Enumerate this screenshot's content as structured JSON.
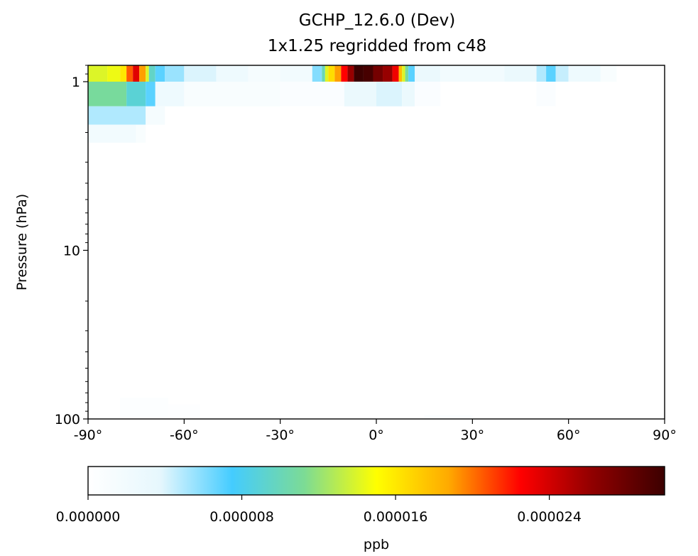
{
  "chart_data": [
    {
      "type": "heatmap",
      "title": "GCHP_12.6.0 (Dev)",
      "subtitle": "1x1.25 regridded from c48",
      "xlabel": "",
      "ylabel": "Pressure (hPa)",
      "xlim": [
        -90,
        90
      ],
      "ylim": [
        100,
        0.8
      ],
      "yscale": "log",
      "xticks": [
        -90,
        -60,
        -30,
        0,
        30,
        60,
        90
      ],
      "xtick_labels": [
        "-90°",
        "-60°",
        "-30°",
        "0°",
        "30°",
        "60°",
        "90°"
      ],
      "yticks": [
        1,
        10,
        100
      ],
      "ytick_labels": [
        "1",
        "10",
        "100"
      ],
      "grid": false,
      "cells": [
        {
          "lat": [
            -90,
            -84
          ],
          "p": [
            0.8,
            1.0
          ],
          "v": 1.4e-05
        },
        {
          "lat": [
            -84,
            -80
          ],
          "p": [
            0.8,
            1.0
          ],
          "v": 1.45e-05
        },
        {
          "lat": [
            -80,
            -78
          ],
          "p": [
            0.8,
            1.0
          ],
          "v": 1.6e-05
        },
        {
          "lat": [
            -78,
            -76
          ],
          "p": [
            0.8,
            1.0
          ],
          "v": 2.05e-05
        },
        {
          "lat": [
            -76,
            -74
          ],
          "p": [
            0.8,
            1.0
          ],
          "v": 2.35e-05
        },
        {
          "lat": [
            -74,
            -72
          ],
          "p": [
            0.8,
            1.0
          ],
          "v": 1.9e-05
        },
        {
          "lat": [
            -72,
            -71
          ],
          "p": [
            0.8,
            1.0
          ],
          "v": 1.4e-05
        },
        {
          "lat": [
            -71,
            -69
          ],
          "p": [
            0.8,
            1.0
          ],
          "v": 9.5e-06
        },
        {
          "lat": [
            -69,
            -66
          ],
          "p": [
            0.8,
            1.0
          ],
          "v": 7e-06
        },
        {
          "lat": [
            -66,
            -60
          ],
          "p": [
            0.8,
            1.0
          ],
          "v": 5.5e-06
        },
        {
          "lat": [
            -60,
            -50
          ],
          "p": [
            0.8,
            1.0
          ],
          "v": 4e-06
        },
        {
          "lat": [
            -50,
            -40
          ],
          "p": [
            0.8,
            1.0
          ],
          "v": 2.5e-06
        },
        {
          "lat": [
            -40,
            -30
          ],
          "p": [
            0.8,
            1.0
          ],
          "v": 1.5e-06
        },
        {
          "lat": [
            -30,
            -20
          ],
          "p": [
            0.8,
            1.0
          ],
          "v": 2e-06
        },
        {
          "lat": [
            -20,
            -17
          ],
          "p": [
            0.8,
            1.0
          ],
          "v": 6e-06
        },
        {
          "lat": [
            -17,
            -16
          ],
          "p": [
            0.8,
            1.0
          ],
          "v": 1e-05
        },
        {
          "lat": [
            -16,
            -15
          ],
          "p": [
            0.8,
            1.0
          ],
          "v": 1.4e-05
        },
        {
          "lat": [
            -15,
            -13
          ],
          "p": [
            0.8,
            1.0
          ],
          "v": 1.65e-05
        },
        {
          "lat": [
            -13,
            -11
          ],
          "p": [
            0.8,
            1.0
          ],
          "v": 1.9e-05
        },
        {
          "lat": [
            -11,
            -9
          ],
          "p": [
            0.8,
            1.0
          ],
          "v": 2.25e-05
        },
        {
          "lat": [
            -9,
            -7
          ],
          "p": [
            0.8,
            1.0
          ],
          "v": 2.6e-05
        },
        {
          "lat": [
            -7,
            -4
          ],
          "p": [
            0.8,
            1.0
          ],
          "v": 3e-05
        },
        {
          "lat": [
            -4,
            -1
          ],
          "p": [
            0.8,
            1.0
          ],
          "v": 2.95e-05
        },
        {
          "lat": [
            -1,
            2
          ],
          "p": [
            0.8,
            1.0
          ],
          "v": 2.75e-05
        },
        {
          "lat": [
            2,
            5
          ],
          "p": [
            0.8,
            1.0
          ],
          "v": 2.6e-05
        },
        {
          "lat": [
            5,
            7
          ],
          "p": [
            0.8,
            1.0
          ],
          "v": 2.3e-05
        },
        {
          "lat": [
            7,
            8
          ],
          "p": [
            0.8,
            1.0
          ],
          "v": 1.8e-05
        },
        {
          "lat": [
            8,
            9
          ],
          "p": [
            0.8,
            1.0
          ],
          "v": 1.4e-05
        },
        {
          "lat": [
            9,
            10
          ],
          "p": [
            0.8,
            1.0
          ],
          "v": 1.1e-05
        },
        {
          "lat": [
            10,
            12
          ],
          "p": [
            0.8,
            1.0
          ],
          "v": 7e-06
        },
        {
          "lat": [
            12,
            20
          ],
          "p": [
            0.8,
            1.0
          ],
          "v": 3e-06
        },
        {
          "lat": [
            20,
            40
          ],
          "p": [
            0.8,
            1.0
          ],
          "v": 2e-06
        },
        {
          "lat": [
            40,
            50
          ],
          "p": [
            0.8,
            1.0
          ],
          "v": 3e-06
        },
        {
          "lat": [
            50,
            53
          ],
          "p": [
            0.8,
            1.0
          ],
          "v": 5e-06
        },
        {
          "lat": [
            53,
            56
          ],
          "p": [
            0.8,
            1.0
          ],
          "v": 7e-06
        },
        {
          "lat": [
            56,
            60
          ],
          "p": [
            0.8,
            1.0
          ],
          "v": 4.5e-06
        },
        {
          "lat": [
            60,
            70
          ],
          "p": [
            0.8,
            1.0
          ],
          "v": 2.5e-06
        },
        {
          "lat": [
            70,
            75
          ],
          "p": [
            0.8,
            1.0
          ],
          "v": 1e-06
        },
        {
          "lat": [
            -90,
            -78
          ],
          "p": [
            1.0,
            1.4
          ],
          "v": 1.1e-05
        },
        {
          "lat": [
            -78,
            -72
          ],
          "p": [
            1.0,
            1.4
          ],
          "v": 9e-06
        },
        {
          "lat": [
            -72,
            -69
          ],
          "p": [
            1.0,
            1.4
          ],
          "v": 7e-06
        },
        {
          "lat": [
            -69,
            -60
          ],
          "p": [
            1.0,
            1.4
          ],
          "v": 2.5e-06
        },
        {
          "lat": [
            -60,
            -30
          ],
          "p": [
            1.0,
            1.4
          ],
          "v": 1e-06
        },
        {
          "lat": [
            -30,
            -10
          ],
          "p": [
            1.0,
            1.4
          ],
          "v": 8e-07
        },
        {
          "lat": [
            -10,
            0
          ],
          "p": [
            1.0,
            1.4
          ],
          "v": 3e-06
        },
        {
          "lat": [
            0,
            8
          ],
          "p": [
            1.0,
            1.4
          ],
          "v": 4e-06
        },
        {
          "lat": [
            8,
            12
          ],
          "p": [
            1.0,
            1.4
          ],
          "v": 3e-06
        },
        {
          "lat": [
            12,
            20
          ],
          "p": [
            1.0,
            1.4
          ],
          "v": 8e-07
        },
        {
          "lat": [
            50,
            56
          ],
          "p": [
            1.0,
            1.4
          ],
          "v": 8e-07
        },
        {
          "lat": [
            -90,
            -72
          ],
          "p": [
            1.4,
            1.8
          ],
          "v": 5e-06
        },
        {
          "lat": [
            -72,
            -66
          ],
          "p": [
            1.4,
            1.8
          ],
          "v": 1.5e-06
        },
        {
          "lat": [
            -90,
            -75
          ],
          "p": [
            1.8,
            2.3
          ],
          "v": 2e-06
        },
        {
          "lat": [
            -75,
            -72
          ],
          "p": [
            1.8,
            2.3
          ],
          "v": 1e-06
        },
        {
          "lat": [
            -80,
            -65
          ],
          "p": [
            75,
            100
          ],
          "v": 5e-07
        },
        {
          "lat": [
            -65,
            -55
          ],
          "p": [
            82,
            100
          ],
          "v": 3e-07
        },
        {
          "lat": [
            15,
            30
          ],
          "p": [
            95,
            100
          ],
          "v": 6e-07
        }
      ]
    },
    {
      "type": "colorbar",
      "label": "ppb",
      "range": [
        0.0,
        3e-05
      ],
      "ticks": [
        0.0,
        8e-06,
        1.6e-05,
        2.4e-05
      ],
      "tick_labels": [
        "0.000000",
        "0.000008",
        "0.000016",
        "0.000024"
      ],
      "colormap": "WhGrYlRd",
      "colormap_stops": [
        "#ffffff",
        "#e6f7fd",
        "#44ccff",
        "#7cdb95",
        "#ffff00",
        "#ffaa00",
        "#ff0000",
        "#900000",
        "#3c0000"
      ]
    }
  ]
}
